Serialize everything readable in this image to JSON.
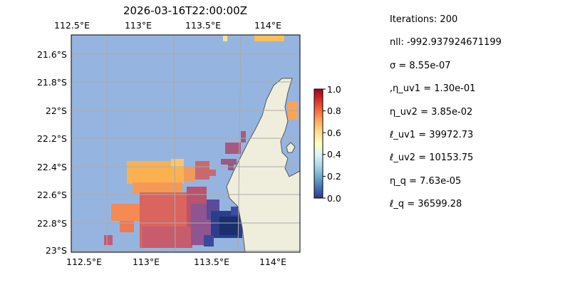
{
  "map": {
    "title": "2026-03-16T22:00:00Z",
    "lon_ticks": [
      "112.5°E",
      "113°E",
      "113.5°E",
      "114°E"
    ],
    "lat_ticks": [
      "21.6°S",
      "21.8°S",
      "22°S",
      "22.2°S",
      "22.4°S",
      "22.6°S",
      "22.8°S",
      "23°S"
    ],
    "lon_values": [
      112.5,
      113.0,
      113.5,
      114.0
    ],
    "lat_values": [
      -21.6,
      -21.8,
      -22.0,
      -22.2,
      -22.4,
      -22.6,
      -22.8,
      -23.0
    ],
    "extent": {
      "lon": [
        112.5,
        114.2
      ],
      "lat": [
        -21.47,
        -23.02
      ]
    },
    "grid": true,
    "colors": {
      "ocean": "#95b5e0",
      "land": "#efeedd",
      "coast": "#555555",
      "grid": "#aaaaaa"
    }
  },
  "colorbar": {
    "ticks": [
      "0.0",
      "0.2",
      "0.4",
      "0.6",
      "0.8",
      "1.0"
    ],
    "tick_values": [
      0.0,
      0.2,
      0.4,
      0.6,
      0.8,
      1.0
    ],
    "range": [
      0,
      1
    ],
    "colormap": "RdYlBu_r"
  },
  "params": [
    "Iterations: 200",
    "nll: -992.937924671199",
    "σ = 8.55e-07",
    ",η_uv1 = 1.30e-01",
    "η_uv2 = 3.85e-02",
    "ℓ_uv1 = 39972.73",
    "ℓ_uv2 = 10153.75",
    "η_q = 7.63e-05",
    "ℓ_q = 36599.28"
  ]
}
